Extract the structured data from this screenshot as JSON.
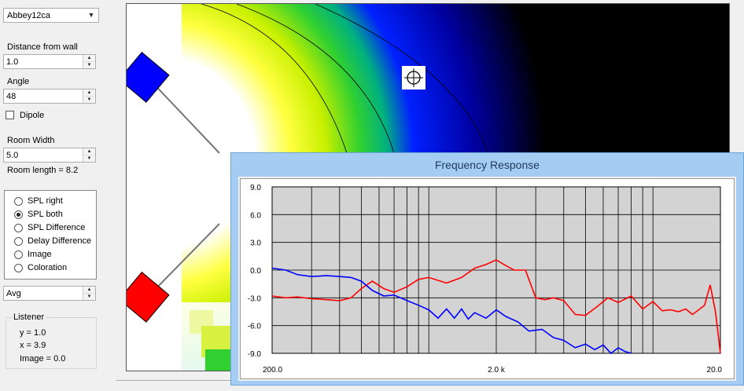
{
  "controls": {
    "preset_combo": "Abbey12ca",
    "distance_label": "Distance from wall",
    "distance_value": "1.0",
    "angle_label": "Angle",
    "angle_value": "48",
    "dipole_label": "Dipole",
    "room_width_label": "Room Width",
    "room_width_value": "5.0",
    "room_length_text": "Room length = 8.2",
    "radio_options": [
      "SPL right",
      "SPL both",
      "SPL Difference",
      "Delay Difference",
      "Image",
      "Coloration"
    ],
    "radio_selected": 1,
    "avg_value": "Avg",
    "listener_title": "Listener",
    "listener_y": "y = 1.0",
    "listener_x": "x = 3.9",
    "listener_image": "Image = 0.0"
  },
  "room": {
    "left_speaker_color": "#0000ff",
    "right_speaker_color": "#ff0000",
    "listener_icon": "listener-crosshair-icon"
  },
  "window": {
    "title": "Frequency Response"
  },
  "chart_data": {
    "type": "line",
    "title": "",
    "xlabel": "",
    "ylabel": "",
    "x_scale": "log",
    "xlim": [
      200,
      20000
    ],
    "ylim": [
      -9,
      9
    ],
    "x_tick_labels": [
      "200.0",
      "2.0 k",
      "20.0"
    ],
    "y_tick_labels": [
      "9.0",
      "6.0",
      "3.0",
      "0.0",
      "-3.0",
      "-6.0",
      "-9.0"
    ],
    "y_ticks": [
      9,
      6,
      3,
      0,
      -3,
      -6,
      -9
    ],
    "grid": true,
    "series": [
      {
        "color": "#ff0000",
        "x": [
          200,
          230,
          260,
          300,
          350,
          400,
          450,
          500,
          560,
          630,
          700,
          800,
          900,
          1000,
          1200,
          1400,
          1600,
          1800,
          2000,
          2200,
          2400,
          2700,
          3000,
          3300,
          3600,
          4000,
          4500,
          5000,
          5600,
          6300,
          7000,
          8000,
          9000,
          10000,
          11000,
          12000,
          13000,
          14000,
          15000,
          16000,
          17000,
          18000,
          19000,
          20000
        ],
        "y": [
          -2.8,
          -3.0,
          -2.9,
          -3.1,
          -3.2,
          -3.3,
          -3.0,
          -2.0,
          -1.2,
          -2.0,
          -2.4,
          -1.8,
          -1.0,
          -0.8,
          -1.4,
          -0.8,
          0.2,
          0.6,
          1.1,
          0.5,
          0.0,
          0.0,
          -3.0,
          -3.2,
          -3.0,
          -3.3,
          -4.8,
          -4.9,
          -4.0,
          -3.0,
          -3.5,
          -2.8,
          -4.2,
          -3.4,
          -4.4,
          -4.3,
          -4.5,
          -4.2,
          -4.8,
          -4.3,
          -3.8,
          -1.6,
          -4.5,
          -9.0
        ]
      },
      {
        "color": "#0000ff",
        "x": [
          200,
          230,
          260,
          300,
          350,
          400,
          450,
          500,
          560,
          630,
          700,
          800,
          900,
          1000,
          1100,
          1200,
          1300,
          1400,
          1500,
          1600,
          1800,
          2000,
          2200,
          2500,
          2800,
          3200,
          3600,
          4000,
          4500,
          5000,
          5500,
          6000,
          6500,
          7000,
          7500,
          8000
        ],
        "y": [
          0.2,
          0.0,
          -0.5,
          -0.7,
          -0.6,
          -0.7,
          -0.8,
          -1.2,
          -2.2,
          -2.8,
          -2.7,
          -3.3,
          -3.8,
          -4.3,
          -5.2,
          -4.2,
          -5.2,
          -4.2,
          -5.3,
          -4.6,
          -5.2,
          -4.3,
          -5.0,
          -5.6,
          -6.6,
          -6.4,
          -7.3,
          -7.6,
          -8.4,
          -8.0,
          -8.6,
          -8.1,
          -9.0,
          -8.4,
          -8.8,
          -9.0
        ]
      }
    ]
  }
}
